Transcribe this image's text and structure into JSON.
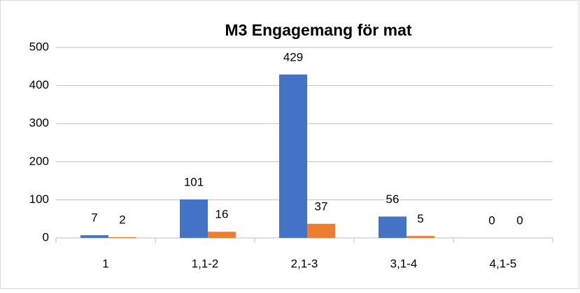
{
  "chart_data": {
    "type": "bar",
    "title": "M3 Engagemang för mat",
    "categories": [
      "1",
      "1,1-2",
      "2,1-3",
      "3,1-4",
      "4,1-5"
    ],
    "series": [
      {
        "color": "#4472c4",
        "values": [
          7,
          101,
          429,
          56,
          0
        ]
      },
      {
        "color": "#ed7d31",
        "values": [
          2,
          16,
          37,
          5,
          0
        ]
      }
    ],
    "ylim": [
      0,
      500
    ],
    "yticks": [
      0,
      100,
      200,
      300,
      400,
      500
    ],
    "grid": true
  }
}
